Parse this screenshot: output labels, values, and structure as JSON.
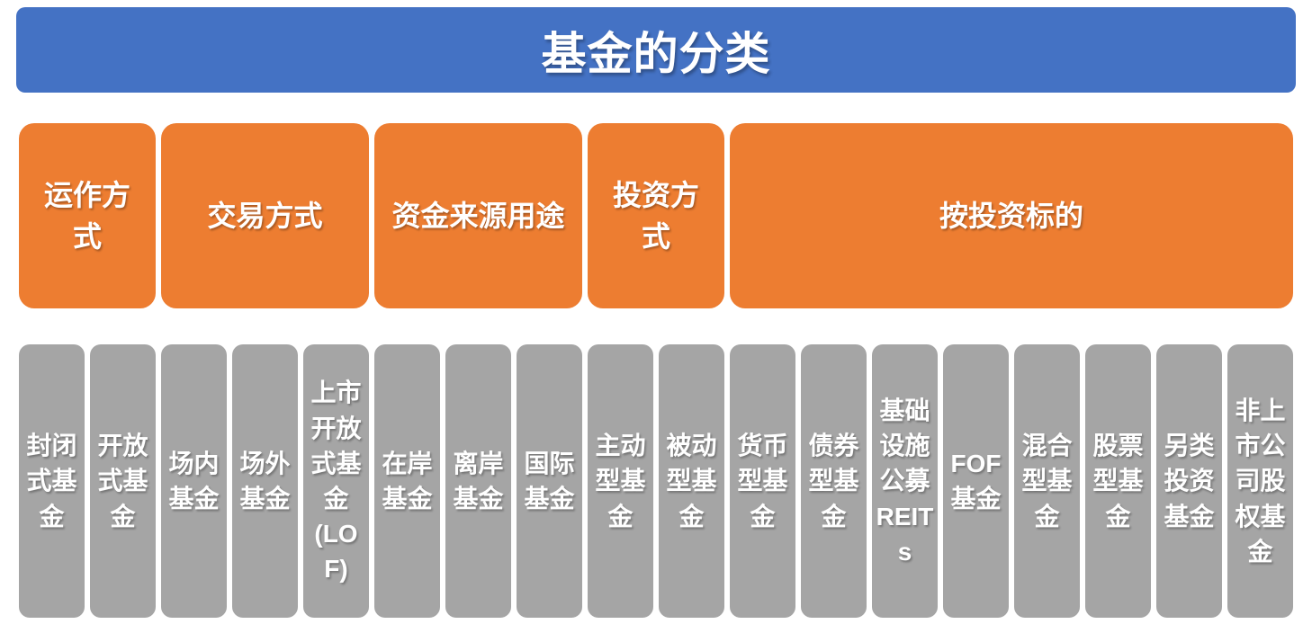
{
  "title": "基金的分类",
  "colors": {
    "banner": "#4472C4",
    "category": "#ED7D31",
    "leaf": "#A5A5A5",
    "label_text": "#FFFFFF",
    "background": "#FFFFFF"
  },
  "categories": [
    {
      "label": "运作方式",
      "lines": [
        "运作方",
        "式"
      ],
      "children": [
        {
          "label": "封闭式基金",
          "lines": [
            "封闭",
            "式基",
            "金"
          ]
        },
        {
          "label": "开放式基金",
          "lines": [
            "开放",
            "式基",
            "金"
          ]
        }
      ]
    },
    {
      "label": "交易方式",
      "lines": [
        "交易方式"
      ],
      "children": [
        {
          "label": "场内基金",
          "lines": [
            "场内",
            "基金"
          ]
        },
        {
          "label": "场外基金",
          "lines": [
            "场外",
            "基金"
          ]
        },
        {
          "label": "上市开放式基金(LOF)",
          "lines": [
            "上市",
            "开放",
            "式基",
            "金",
            "(LO",
            "F)"
          ]
        }
      ]
    },
    {
      "label": "资金来源用途",
      "lines": [
        "资金来源用途"
      ],
      "children": [
        {
          "label": "在岸基金",
          "lines": [
            "在岸",
            "基金"
          ]
        },
        {
          "label": "离岸基金",
          "lines": [
            "离岸",
            "基金"
          ]
        },
        {
          "label": "国际基金",
          "lines": [
            "国际",
            "基金"
          ]
        }
      ]
    },
    {
      "label": "投资方式",
      "lines": [
        "投资方",
        "式"
      ],
      "children": [
        {
          "label": "主动型基金",
          "lines": [
            "主动",
            "型基",
            "金"
          ]
        },
        {
          "label": "被动型基金",
          "lines": [
            "被动",
            "型基",
            "金"
          ]
        }
      ]
    },
    {
      "label": "按投资标的",
      "lines": [
        "按投资标的"
      ],
      "children": [
        {
          "label": "货币型基金",
          "lines": [
            "货币",
            "型基",
            "金"
          ]
        },
        {
          "label": "债券型基金",
          "lines": [
            "债券",
            "型基",
            "金"
          ]
        },
        {
          "label": "基础设施公募REITs",
          "lines": [
            "基础",
            "设施",
            "公募",
            "REIT",
            "s"
          ]
        },
        {
          "label": "FOF基金",
          "lines": [
            "FOF",
            "基金"
          ]
        },
        {
          "label": "混合型基金",
          "lines": [
            "混合",
            "型基",
            "金"
          ]
        },
        {
          "label": "股票型基金",
          "lines": [
            "股票",
            "型基",
            "金"
          ]
        },
        {
          "label": "另类投资基金",
          "lines": [
            "另类",
            "投资",
            "基金"
          ]
        },
        {
          "label": "非上市公司股权基金",
          "lines": [
            "非上",
            "市公",
            "司股",
            "权基",
            "金"
          ]
        }
      ]
    }
  ]
}
